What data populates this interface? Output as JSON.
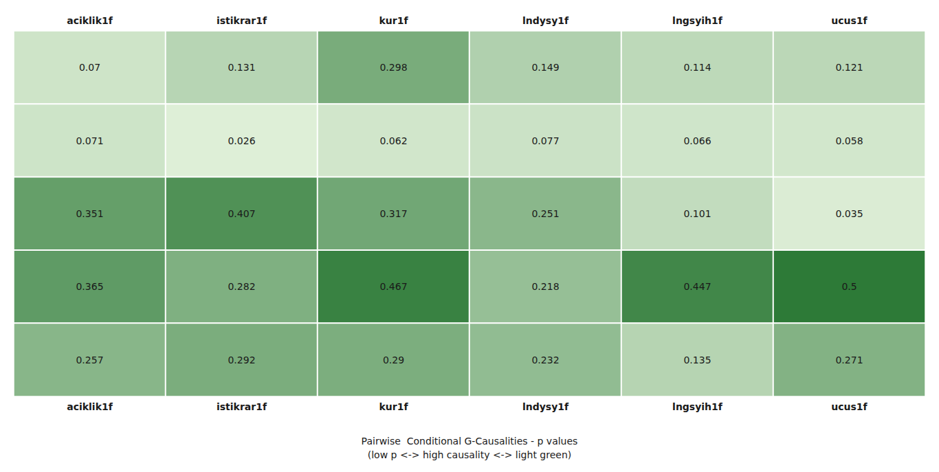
{
  "chart_data": {
    "type": "heatmap",
    "title": "Pairwise  Conditional G-Causalities - p values\n(low p <-> high causality <-> light green)",
    "categories": [
      "aciklik1f",
      "istikrar1f",
      "kur1f",
      "lndysy1f",
      "lngsyih1f",
      "ucus1f"
    ],
    "values": [
      [
        0.07,
        0.131,
        0.298,
        0.149,
        0.114,
        0.121
      ],
      [
        0.071,
        0.026,
        0.062,
        0.077,
        0.066,
        0.058
      ],
      [
        0.351,
        0.407,
        0.317,
        0.251,
        0.101,
        0.035
      ],
      [
        0.365,
        0.282,
        0.467,
        0.218,
        0.447,
        0.5
      ],
      [
        0.257,
        0.292,
        0.29,
        0.232,
        0.135,
        0.271
      ]
    ],
    "color_range": [
      0,
      0.5
    ],
    "color": [
      "#e8f5e0",
      "#2d7a37"
    ],
    "data_labels": true,
    "tick_labels": "x",
    "grid": false,
    "legend": "none"
  }
}
